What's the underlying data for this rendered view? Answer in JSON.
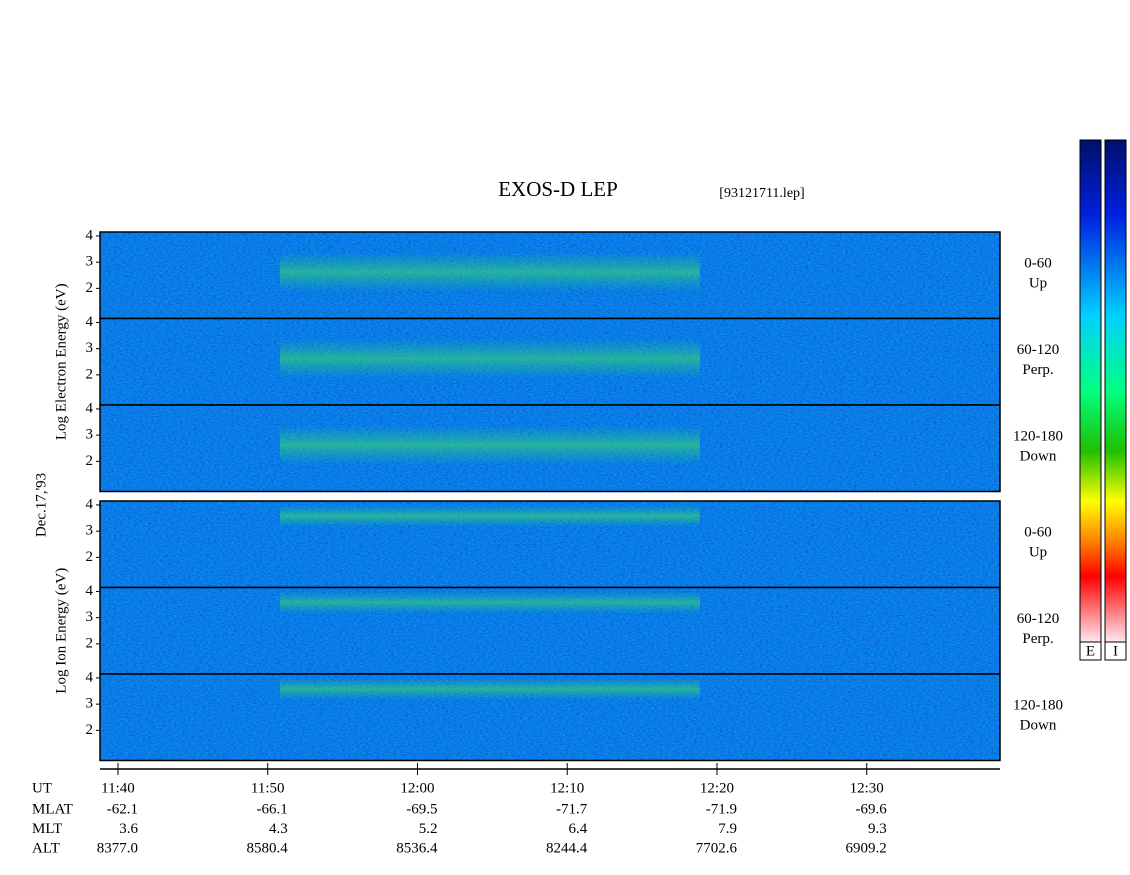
{
  "chart_data": {
    "type": "spectrogram",
    "title": "EXOS-D LEP",
    "file_label": "[93121711.lep]",
    "date_label": "Dec.17,'93",
    "groups": [
      {
        "axis_label": "Log Electron Energy (eV)",
        "panels": [
          {
            "angle": "0-60",
            "direction": "Up"
          },
          {
            "angle": "60-120",
            "direction": "Perp."
          },
          {
            "angle": "120-180",
            "direction": "Down"
          }
        ]
      },
      {
        "axis_label": "Log Ion Energy (eV)",
        "panels": [
          {
            "angle": "0-60",
            "direction": "Up"
          },
          {
            "angle": "60-120",
            "direction": "Perp."
          },
          {
            "angle": "120-180",
            "direction": "Down"
          }
        ]
      }
    ],
    "ylim": [
      0.85,
      4.15
    ],
    "yticks": [
      2,
      3,
      4
    ],
    "xlim": [
      698.8,
      758.9
    ],
    "xlabel": "UT",
    "xticks": [
      {
        "value": 700,
        "label": "11:40"
      },
      {
        "value": 710,
        "label": "11:50"
      },
      {
        "value": 720,
        "label": "12:00"
      },
      {
        "value": 730,
        "label": "12:10"
      },
      {
        "value": 740,
        "label": "12:20"
      },
      {
        "value": 750,
        "label": "12:30"
      }
    ],
    "ephemeris": [
      {
        "name": "MLAT",
        "values": [
          "-62.1",
          "-66.1",
          "-69.5",
          "-71.7",
          "-71.9",
          "-69.6"
        ]
      },
      {
        "name": "MLT",
        "values": [
          "3.6",
          "4.3",
          "5.2",
          "6.4",
          "7.9",
          "9.3"
        ]
      },
      {
        "name": "ALT",
        "values": [
          "8377.0",
          "8580.4",
          "8536.4",
          "8244.4",
          "7702.6",
          "6909.2"
        ]
      }
    ],
    "colorbars": [
      "E",
      "I"
    ]
  }
}
